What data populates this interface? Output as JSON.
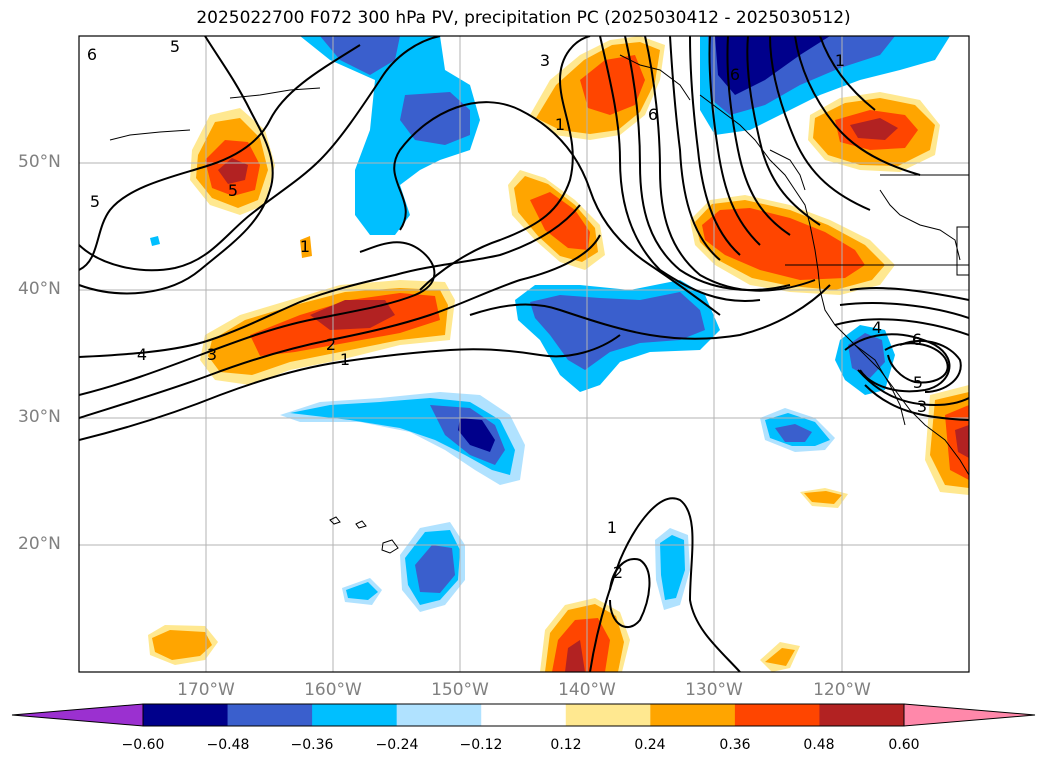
{
  "title": "2025022700 F072 300 hPa PV, precipitation PC (2025030412 - 2025030512)",
  "lat_labels": [
    "50°N",
    "40°N",
    "30°N",
    "20°N"
  ],
  "lon_labels": [
    "170°W",
    "160°W",
    "150°W",
    "140°W",
    "130°W",
    "120°W"
  ],
  "colorbar": {
    "ticks": [
      "−0.60",
      "−0.48",
      "−0.36",
      "−0.24",
      "−0.12",
      "0.12",
      "0.24",
      "0.36",
      "0.48",
      "0.60"
    ],
    "colors": [
      "#9b30d0",
      "#00008b",
      "#3a5fcd",
      "#00bfff",
      "#b0e2ff",
      "#ffffff",
      "#ffe890",
      "#ffa500",
      "#ff4500",
      "#b22222",
      "#ff88aa"
    ]
  },
  "contour_labels": [
    {
      "text": "6"
    },
    {
      "text": "5"
    },
    {
      "text": "5"
    },
    {
      "text": "5"
    },
    {
      "text": "4"
    },
    {
      "text": "3"
    },
    {
      "text": "2"
    },
    {
      "text": "1"
    },
    {
      "text": "1"
    },
    {
      "text": "3"
    },
    {
      "text": "6"
    },
    {
      "text": "1"
    },
    {
      "text": "6"
    },
    {
      "text": "1"
    },
    {
      "text": "4"
    },
    {
      "text": "6"
    },
    {
      "text": "5"
    },
    {
      "text": "3"
    },
    {
      "text": "1"
    },
    {
      "text": "2"
    }
  ]
}
